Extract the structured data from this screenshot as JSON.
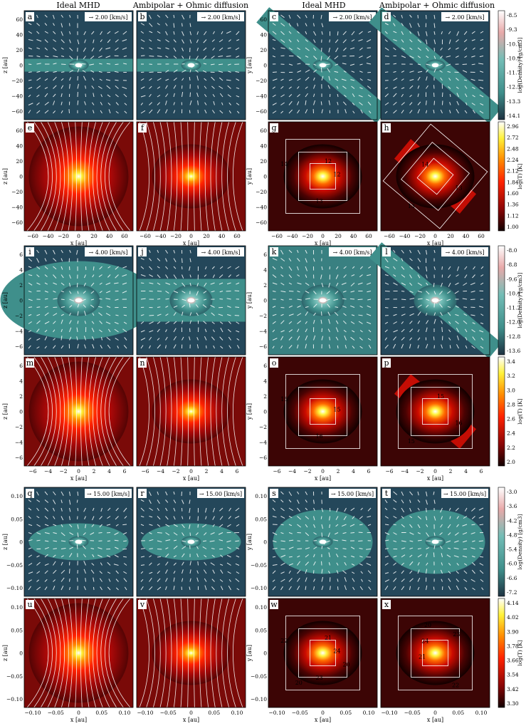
{
  "column_titles": [
    "Ideal MHD",
    "Ambipolar + Ohmic diffusion",
    "Ideal MHD",
    "Ambipolar + Ohmic diffusion"
  ],
  "axis_labels": {
    "x": "x [au]",
    "y": "y [au]",
    "z": "z [au]"
  },
  "colors": {
    "teal": "#3f8f8b",
    "dark_navy": "#1e3242",
    "hot": "#ff2200"
  },
  "rows": [
    {
      "id": "row1",
      "velocity_scale": "→ 2.00 [km/s]",
      "ticks": [
        "60",
        "40",
        "20",
        "0",
        "−20",
        "−40",
        "−60"
      ],
      "ticks_short": [
        "−60",
        "−40",
        "−20",
        "0",
        "20",
        "40",
        "60"
      ],
      "top_panels": [
        "a",
        "b",
        "c",
        "d"
      ],
      "bottom_panels": [
        "e",
        "f",
        "g",
        "h"
      ],
      "density_colorbar": {
        "label": "log(Density) [g/cm3]",
        "ticks": [
          "-8.5",
          "-9.3",
          "-10.1",
          "-10.9",
          "-11.7",
          "-12.5",
          "-13.3",
          "-14.1"
        ]
      },
      "temperature_colorbar": {
        "label": "log(T) [K]",
        "ticks": [
          "2.96",
          "2.72",
          "2.48",
          "2.24",
          "2.12",
          "1.84",
          "1.60",
          "1.36",
          "1.12",
          "1.00"
        ]
      },
      "contour_labels": [
        "12",
        "13",
        "14",
        "12",
        "13",
        "13",
        "14"
      ]
    },
    {
      "id": "row2",
      "velocity_scale": "→ 4.00 [km/s]",
      "ticks": [
        "6",
        "4",
        "2",
        "0",
        "−2",
        "−4",
        "−6"
      ],
      "ticks_short": [
        "−6",
        "−4",
        "−2",
        "0",
        "2",
        "4",
        "6"
      ],
      "top_panels": [
        "i",
        "j",
        "k",
        "l"
      ],
      "bottom_panels": [
        "m",
        "n",
        "o",
        "p"
      ],
      "density_colorbar": {
        "label": "log(Density) [g/cm3]",
        "ticks": [
          "-8.0",
          "-8.8",
          "-9.6",
          "-10.4",
          "-11.2",
          "-12.0",
          "-12.8",
          "-13.6"
        ]
      },
      "temperature_colorbar": {
        "label": "log(T) [K]",
        "ticks": [
          "3.4",
          "3.2",
          "3.0",
          "2.8",
          "2.6",
          "2.4",
          "2.2",
          "2.0"
        ]
      },
      "contour_labels": [
        "15",
        "16",
        "15",
        "15",
        "16",
        "15"
      ]
    },
    {
      "id": "row3",
      "velocity_scale": "→ 15.00 [km/s]",
      "ticks": [
        "0.10",
        "0.05",
        "0",
        "−0.05",
        "−0.10"
      ],
      "ticks_short": [
        "−0.10",
        "−0.05",
        "0",
        "0.05",
        "0.10"
      ],
      "top_panels": [
        "q",
        "r",
        "s",
        "t"
      ],
      "bottom_panels": [
        "u",
        "v",
        "w",
        "x"
      ],
      "density_colorbar": {
        "label": "log(Density) [g/cm3]",
        "ticks": [
          "-3.0",
          "-3.6",
          "-4.2",
          "-4.8",
          "-5.4",
          "-6.0",
          "-6.6",
          "-7.2"
        ]
      },
      "temperature_colorbar": {
        "label": "log(T) [K]",
        "ticks": [
          "4.14",
          "4.02",
          "3.90",
          "3.78",
          "3.66",
          "3.54",
          "3.42",
          "3.30"
        ]
      },
      "contour_labels": [
        "24",
        "23",
        "22",
        "21",
        "20",
        "20",
        "24",
        "23",
        "22",
        "21",
        "20"
      ]
    }
  ]
}
